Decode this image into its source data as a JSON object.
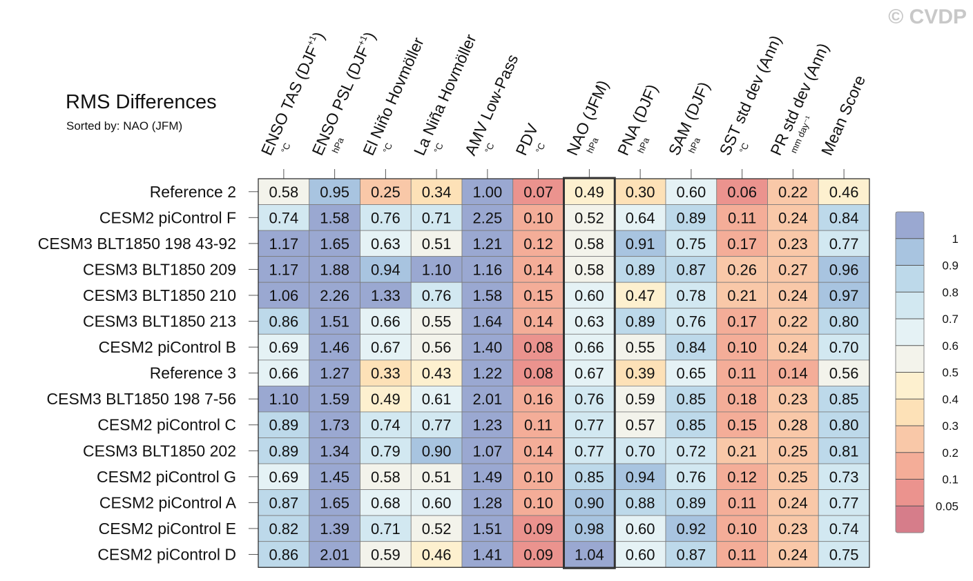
{
  "watermark": "© CVDP",
  "chart_data": {
    "type": "heatmap",
    "title": "RMS Differences",
    "subtitle": "Sorted by: NAO (JFM)",
    "highlight_column": "NAO (JFM)",
    "columns": [
      {
        "label": "ENSO TAS (DJF",
        "sup": "+1",
        "close": ")",
        "unit": "°C"
      },
      {
        "label": "ENSO PSL (DJF",
        "sup": "+1",
        "close": ")",
        "unit": "hPa"
      },
      {
        "label": "El Niño Hovmöller",
        "sup": "",
        "close": "",
        "unit": "°C"
      },
      {
        "label": "La Niña Hovmöller",
        "sup": "",
        "close": "",
        "unit": "°C"
      },
      {
        "label": "AMV Low-Pass",
        "sup": "",
        "close": "",
        "unit": "°C"
      },
      {
        "label": "PDV",
        "sup": "",
        "close": "",
        "unit": "°C"
      },
      {
        "label": "NAO (JFM)",
        "sup": "",
        "close": "",
        "unit": "hPa"
      },
      {
        "label": "PNA (DJF)",
        "sup": "",
        "close": "",
        "unit": "hPa"
      },
      {
        "label": "SAM (DJF)",
        "sup": "",
        "close": "",
        "unit": "hPa"
      },
      {
        "label": "SST std dev (Ann)",
        "sup": "",
        "close": "",
        "unit": "°C"
      },
      {
        "label": "PR std dev (Ann)",
        "sup": "",
        "close": "",
        "unit": "mm day⁻¹"
      },
      {
        "label": "Mean Score",
        "sup": "",
        "close": "",
        "unit": ""
      }
    ],
    "rows": [
      {
        "name": "Reference 2",
        "values": [
          "0.58",
          "0.95",
          "0.25",
          "0.34",
          "1.00",
          "0.07",
          "0.49",
          "0.30",
          "0.60",
          "0.06",
          "0.22",
          "0.46"
        ]
      },
      {
        "name": "CESM2 piControl F",
        "values": [
          "0.74",
          "1.58",
          "0.76",
          "0.71",
          "2.25",
          "0.10",
          "0.52",
          "0.64",
          "0.89",
          "0.11",
          "0.24",
          "0.84"
        ]
      },
      {
        "name": "CESM3 BLT1850 198 43-92",
        "values": [
          "1.17",
          "1.65",
          "0.63",
          "0.51",
          "1.21",
          "0.12",
          "0.58",
          "0.91",
          "0.75",
          "0.17",
          "0.23",
          "0.77"
        ]
      },
      {
        "name": "CESM3 BLT1850 209",
        "values": [
          "1.17",
          "1.88",
          "0.94",
          "1.10",
          "1.16",
          "0.14",
          "0.58",
          "0.89",
          "0.87",
          "0.26",
          "0.27",
          "0.96"
        ]
      },
      {
        "name": "CESM3 BLT1850 210",
        "values": [
          "1.06",
          "2.26",
          "1.33",
          "0.76",
          "1.58",
          "0.15",
          "0.60",
          "0.47",
          "0.78",
          "0.21",
          "0.24",
          "0.97"
        ]
      },
      {
        "name": "CESM3 BLT1850 213",
        "values": [
          "0.86",
          "1.51",
          "0.66",
          "0.55",
          "1.64",
          "0.14",
          "0.63",
          "0.89",
          "0.76",
          "0.17",
          "0.22",
          "0.80"
        ]
      },
      {
        "name": "CESM2 piControl B",
        "values": [
          "0.69",
          "1.46",
          "0.67",
          "0.56",
          "1.40",
          "0.08",
          "0.66",
          "0.55",
          "0.84",
          "0.10",
          "0.24",
          "0.70"
        ]
      },
      {
        "name": "Reference 3",
        "values": [
          "0.66",
          "1.27",
          "0.33",
          "0.43",
          "1.22",
          "0.08",
          "0.67",
          "0.39",
          "0.65",
          "0.11",
          "0.14",
          "0.56"
        ]
      },
      {
        "name": "CESM3 BLT1850 198 7-56",
        "values": [
          "1.10",
          "1.59",
          "0.49",
          "0.61",
          "2.01",
          "0.16",
          "0.76",
          "0.59",
          "0.85",
          "0.18",
          "0.23",
          "0.85"
        ]
      },
      {
        "name": "CESM2 piControl C",
        "values": [
          "0.89",
          "1.73",
          "0.74",
          "0.77",
          "1.23",
          "0.11",
          "0.77",
          "0.57",
          "0.85",
          "0.15",
          "0.28",
          "0.80"
        ]
      },
      {
        "name": "CESM3 BLT1850 202",
        "values": [
          "0.89",
          "1.34",
          "0.79",
          "0.90",
          "1.07",
          "0.14",
          "0.77",
          "0.70",
          "0.72",
          "0.21",
          "0.25",
          "0.81"
        ]
      },
      {
        "name": "CESM2 piControl G",
        "values": [
          "0.69",
          "1.45",
          "0.58",
          "0.51",
          "1.49",
          "0.10",
          "0.85",
          "0.94",
          "0.76",
          "0.12",
          "0.25",
          "0.73"
        ]
      },
      {
        "name": "CESM2 piControl A",
        "values": [
          "0.87",
          "1.65",
          "0.68",
          "0.60",
          "1.28",
          "0.10",
          "0.90",
          "0.88",
          "0.89",
          "0.11",
          "0.24",
          "0.77"
        ]
      },
      {
        "name": "CESM2 piControl E",
        "values": [
          "0.82",
          "1.39",
          "0.71",
          "0.52",
          "1.51",
          "0.09",
          "0.98",
          "0.60",
          "0.92",
          "0.10",
          "0.23",
          "0.74"
        ]
      },
      {
        "name": "CESM2 piControl D",
        "values": [
          "0.86",
          "2.01",
          "0.59",
          "0.46",
          "1.41",
          "0.09",
          "1.04",
          "0.60",
          "0.87",
          "0.11",
          "0.24",
          "0.75"
        ]
      }
    ],
    "colorbar": {
      "levels": [
        "1",
        "0.9",
        "0.8",
        "0.7",
        "0.6",
        "0.5",
        "0.4",
        "0.3",
        "0.2",
        "0.1",
        "0.05"
      ],
      "thresholds": [
        1,
        0.9,
        0.8,
        0.7,
        0.6,
        0.5,
        0.4,
        0.3,
        0.2,
        0.1,
        0.05
      ],
      "colors": [
        "#9aa8d1",
        "#a8c4e0",
        "#bdd9ea",
        "#d2e8f1",
        "#e5f2f5",
        "#f3f3eb",
        "#fdf0cf",
        "#fde1b7",
        "#f9c8a8",
        "#f4ad98",
        "#eb938e",
        "#d67d8a"
      ]
    }
  }
}
